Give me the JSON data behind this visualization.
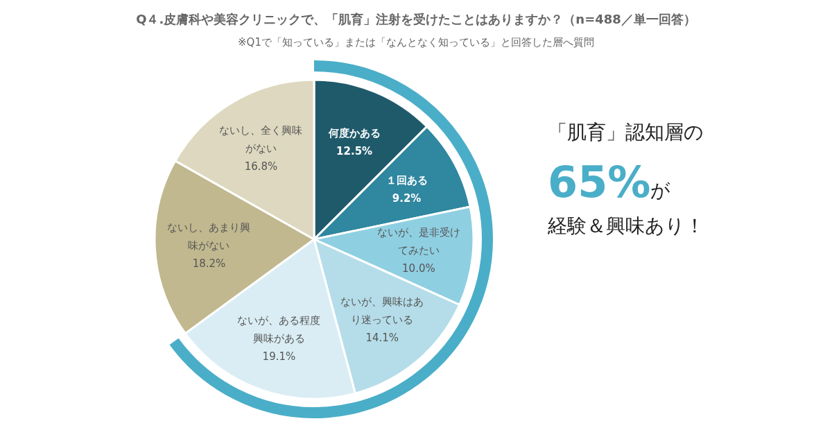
{
  "chart_data": {
    "type": "pie",
    "title": "Q４.皮膚科や美容クリニックで、「肌育」注射を受けたことはありますか？（n=488／単一回答）",
    "subtitle": "※Q1で「知っている」または「なんとなく知っている」と回答した層へ質問",
    "categories": [
      "何度かある",
      "１回ある",
      "ないが、是非受けてみたい",
      "ないが、興味はあり迷っている",
      "ないが、ある程度興味がある",
      "ないし、あまり興味がない",
      "ないし、全く興味がない"
    ],
    "values": [
      12.5,
      9.2,
      10.0,
      14.1,
      19.1,
      18.2,
      16.8
    ],
    "colors": [
      "#1f5a6b",
      "#2f87a0",
      "#8fcfe2",
      "#b5dde9",
      "#daedf4",
      "#c1b88f",
      "#ddd8bf"
    ],
    "value_labels": [
      "12.5%",
      "9.2%",
      "10.0%",
      "14.1%",
      "19.1%",
      "18.2%",
      "16.8%"
    ],
    "annotations": [
      "「肌育」認知層の",
      "65%が",
      "経験＆興味あり！"
    ]
  }
}
